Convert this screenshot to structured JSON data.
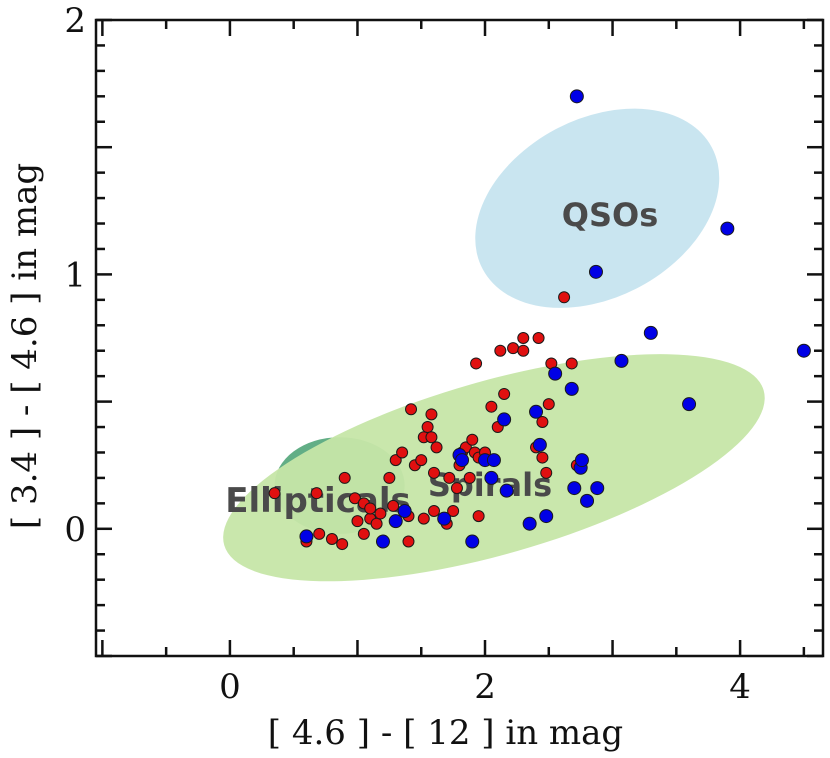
{
  "chart_data": {
    "type": "scatter",
    "xlabel": "[ 4.6 ] - [ 12 ] in mag",
    "ylabel": "[ 3.4 ] - [ 4.6 ] in mag",
    "xlim": [
      -1.05,
      4.65
    ],
    "ylim": [
      -0.5,
      2.0
    ],
    "x_ticks": [
      0,
      2,
      4
    ],
    "y_ticks": [
      0,
      1,
      2
    ],
    "grid": false,
    "regions": [
      {
        "label": "Ellipticals",
        "color": "#5aaa80",
        "cx": 0.86,
        "cy": 0.17,
        "rx": 0.51,
        "ry": 0.19,
        "angle": 0,
        "fontsize": 34
      },
      {
        "label": "Spirals",
        "color": "#c6e6a8",
        "cx": 2.07,
        "cy": 0.24,
        "rx": 2.2,
        "ry": 0.34,
        "angle": 16,
        "fontsize": 32
      },
      {
        "label": "QSOs",
        "color": "#c6e4ef",
        "cx": 2.88,
        "cy": 1.26,
        "rx": 0.7,
        "ry": 0.51,
        "angle": -62,
        "fontsize": 32
      }
    ],
    "series": [
      {
        "color": "#e01010",
        "marker_size": 5.5,
        "points": [
          [
            0.35,
            0.14
          ],
          [
            0.6,
            -0.05
          ],
          [
            0.68,
            0.14
          ],
          [
            0.7,
            -0.02
          ],
          [
            0.8,
            -0.04
          ],
          [
            0.88,
            -0.06
          ],
          [
            0.9,
            0.2
          ],
          [
            0.98,
            0.12
          ],
          [
            1.0,
            0.03
          ],
          [
            1.05,
            0.1
          ],
          [
            1.05,
            -0.02
          ],
          [
            1.1,
            0.04
          ],
          [
            1.1,
            0.08
          ],
          [
            1.15,
            0.02
          ],
          [
            1.18,
            0.06
          ],
          [
            1.25,
            0.2
          ],
          [
            1.28,
            0.09
          ],
          [
            1.3,
            0.27
          ],
          [
            1.35,
            0.3
          ],
          [
            1.4,
            0.05
          ],
          [
            1.4,
            -0.05
          ],
          [
            1.42,
            0.47
          ],
          [
            1.45,
            0.25
          ],
          [
            1.5,
            0.27
          ],
          [
            1.52,
            0.36
          ],
          [
            1.52,
            0.04
          ],
          [
            1.55,
            0.4
          ],
          [
            1.58,
            0.45
          ],
          [
            1.58,
            0.36
          ],
          [
            1.6,
            0.22
          ],
          [
            1.6,
            0.07
          ],
          [
            1.62,
            0.32
          ],
          [
            1.7,
            0.02
          ],
          [
            1.72,
            0.2
          ],
          [
            1.75,
            0.07
          ],
          [
            1.78,
            0.16
          ],
          [
            1.8,
            0.25
          ],
          [
            1.82,
            0.3
          ],
          [
            1.85,
            0.32
          ],
          [
            1.88,
            0.2
          ],
          [
            1.9,
            0.35
          ],
          [
            1.92,
            0.3
          ],
          [
            1.93,
            0.65
          ],
          [
            1.95,
            0.28
          ],
          [
            1.95,
            0.05
          ],
          [
            2.0,
            0.3
          ],
          [
            2.05,
            0.48
          ],
          [
            2.1,
            0.4
          ],
          [
            2.12,
            0.7
          ],
          [
            2.15,
            0.53
          ],
          [
            2.22,
            0.71
          ],
          [
            2.3,
            0.7
          ],
          [
            2.3,
            0.75
          ],
          [
            2.4,
            0.32
          ],
          [
            2.42,
            0.75
          ],
          [
            2.45,
            0.42
          ],
          [
            2.45,
            0.28
          ],
          [
            2.48,
            0.22
          ],
          [
            2.5,
            0.49
          ],
          [
            2.52,
            0.65
          ],
          [
            2.62,
            0.91
          ],
          [
            2.68,
            0.65
          ],
          [
            2.72,
            0.25
          ]
        ]
      },
      {
        "color": "#0000e6",
        "marker_size": 6.5,
        "points": [
          [
            0.6,
            -0.03
          ],
          [
            1.2,
            -0.05
          ],
          [
            1.3,
            0.03
          ],
          [
            1.37,
            0.07
          ],
          [
            1.68,
            0.04
          ],
          [
            1.8,
            0.29
          ],
          [
            1.82,
            0.27
          ],
          [
            1.9,
            -0.05
          ],
          [
            2.0,
            0.27
          ],
          [
            2.05,
            0.2
          ],
          [
            2.07,
            0.27
          ],
          [
            2.15,
            0.43
          ],
          [
            2.17,
            0.15
          ],
          [
            2.35,
            0.02
          ],
          [
            2.4,
            0.46
          ],
          [
            2.43,
            0.33
          ],
          [
            2.48,
            0.05
          ],
          [
            2.55,
            0.61
          ],
          [
            2.68,
            0.55
          ],
          [
            2.7,
            0.16
          ],
          [
            2.72,
            1.7
          ],
          [
            2.75,
            0.24
          ],
          [
            2.76,
            0.27
          ],
          [
            2.8,
            0.11
          ],
          [
            2.87,
            1.01
          ],
          [
            2.88,
            0.16
          ],
          [
            3.07,
            0.66
          ],
          [
            3.3,
            0.77
          ],
          [
            3.6,
            0.49
          ],
          [
            3.9,
            1.18
          ],
          [
            4.5,
            0.7
          ]
        ]
      }
    ]
  }
}
